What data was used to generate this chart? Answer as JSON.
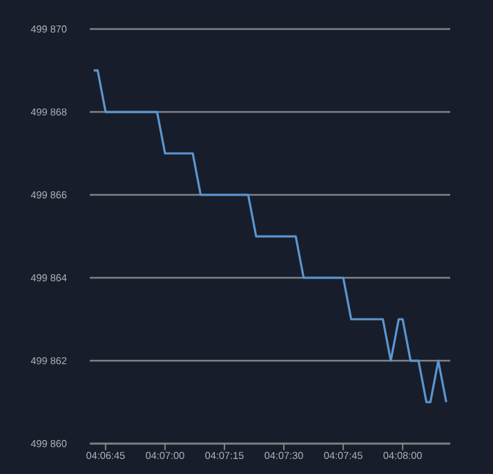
{
  "chart_data": {
    "type": "line",
    "x": [
      4.111667,
      4.111944,
      4.1125,
      4.116111,
      4.116667,
      4.118611,
      4.119167,
      4.1225,
      4.123056,
      4.125833,
      4.126389,
      4.129167,
      4.129722,
      4.131944,
      4.1325,
      4.133056,
      4.133333,
      4.133889,
      4.134444,
      4.135,
      4.135278,
      4.135833,
      4.136389
    ],
    "series": [
      {
        "color": "#5b95d0",
        "values": [
          499869,
          499869,
          499868,
          499868,
          499867,
          499867,
          499866,
          499866,
          499865,
          499865,
          499864,
          499864,
          499863,
          499863,
          499862,
          499863,
          499863,
          499862,
          499862,
          499861,
          499861,
          499862,
          499861
        ]
      }
    ],
    "xlim": [
      4.111389,
      4.136667
    ],
    "xticks": [
      {
        "value": 4.1125,
        "label": "04:06:45"
      },
      {
        "value": 4.116667,
        "label": "04:07:00"
      },
      {
        "value": 4.120833,
        "label": "04:07:15"
      },
      {
        "value": 4.125,
        "label": "04:07:30"
      },
      {
        "value": 4.129167,
        "label": "04:07:45"
      },
      {
        "value": 4.133333,
        "label": "04:08:00"
      }
    ],
    "ylim": [
      499860,
      499870
    ],
    "yticks": [
      {
        "value": 499860,
        "label": "499 860"
      },
      {
        "value": 499862,
        "label": "499 862"
      },
      {
        "value": 499864,
        "label": "499 864"
      },
      {
        "value": 499866,
        "label": "499 866"
      },
      {
        "value": 499868,
        "label": "499 868"
      },
      {
        "value": 499870,
        "label": "499 870"
      }
    ],
    "grid": "y",
    "line_style": "solid"
  }
}
